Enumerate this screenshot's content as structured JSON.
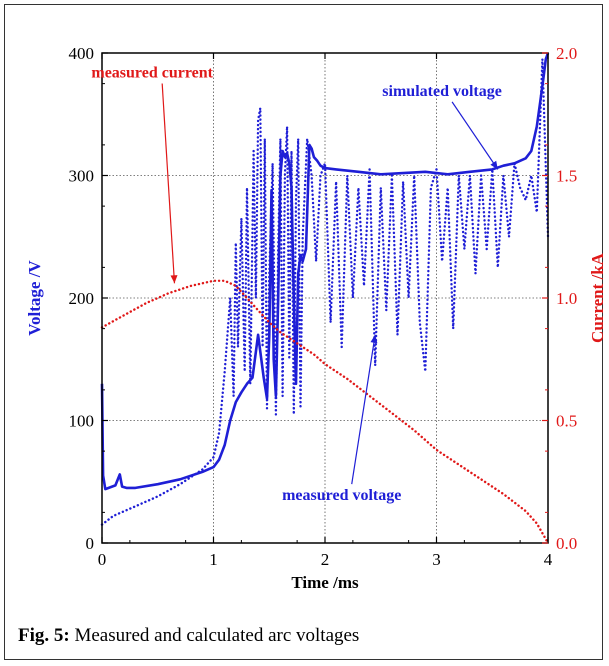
{
  "caption": {
    "label": "Fig. 5:",
    "text": "Measured and calculated arc voltages"
  },
  "chart_data": {
    "type": "line",
    "xlabel": "Time /ms",
    "ylabel_left": "Voltage /V",
    "ylabel_right": "Current /kA",
    "xlim": [
      0,
      4
    ],
    "ylim_left": [
      0,
      400
    ],
    "ylim_right": [
      0,
      2.0
    ],
    "x_ticks": [
      "0",
      "1",
      "2",
      "3",
      "4"
    ],
    "y_left_ticks": [
      "0",
      "100",
      "200",
      "300",
      "400"
    ],
    "y_right_ticks": [
      "0.0",
      "0.5",
      "1.0",
      "1.5",
      "2.0"
    ],
    "grid": true,
    "colors": {
      "voltage": "#1f1fd6",
      "current": "#e01818",
      "axis": "#000000"
    },
    "annotations": [
      {
        "text": "measured current",
        "color": "#e01818",
        "at": [
          0.45,
          380
        ],
        "arrow_to": [
          0.65,
          212
        ]
      },
      {
        "text": "simulated voltage",
        "color": "#1f1fd6",
        "at": [
          3.05,
          365
        ],
        "arrow_to": [
          3.55,
          305
        ]
      },
      {
        "text": "measured voltage",
        "color": "#1f1fd6",
        "at": [
          2.15,
          35
        ],
        "arrow_to": [
          2.45,
          170
        ]
      }
    ],
    "series": [
      {
        "name": "simulated voltage",
        "axis": "left",
        "style": "solid",
        "x": [
          0.0,
          0.01,
          0.03,
          0.06,
          0.12,
          0.16,
          0.18,
          0.22,
          0.3,
          0.5,
          0.7,
          0.9,
          1.0,
          1.05,
          1.1,
          1.15,
          1.2,
          1.25,
          1.3,
          1.35,
          1.4,
          1.45,
          1.48,
          1.5,
          1.52,
          1.54,
          1.56,
          1.58,
          1.6,
          1.62,
          1.64,
          1.66,
          1.68,
          1.7,
          1.72,
          1.74,
          1.76,
          1.78,
          1.8,
          1.83,
          1.86,
          1.88,
          1.9,
          1.93,
          1.96,
          2.0,
          2.1,
          2.3,
          2.5,
          2.7,
          2.9,
          3.1,
          3.3,
          3.5,
          3.6,
          3.7,
          3.8,
          3.85,
          3.9,
          3.93,
          3.96,
          3.98,
          4.0
        ],
        "y": [
          130,
          55,
          44,
          45,
          47,
          56,
          46,
          45,
          45,
          48,
          52,
          58,
          62,
          68,
          80,
          100,
          115,
          123,
          130,
          135,
          170,
          135,
          118,
          170,
          288,
          150,
          120,
          200,
          300,
          320,
          315,
          318,
          310,
          290,
          200,
          130,
          220,
          235,
          230,
          240,
          325,
          322,
          315,
          312,
          308,
          306,
          305,
          303,
          301,
          302,
          303,
          301,
          303,
          305,
          308,
          310,
          314,
          320,
          340,
          360,
          380,
          395,
          400
        ]
      },
      {
        "name": "measured voltage",
        "axis": "left",
        "style": "dotted",
        "x": [
          0.0,
          0.1,
          0.3,
          0.5,
          0.7,
          0.9,
          1.0,
          1.05,
          1.1,
          1.15,
          1.18,
          1.2,
          1.22,
          1.25,
          1.28,
          1.3,
          1.33,
          1.36,
          1.38,
          1.4,
          1.42,
          1.44,
          1.46,
          1.48,
          1.5,
          1.53,
          1.56,
          1.58,
          1.6,
          1.62,
          1.64,
          1.66,
          1.68,
          1.7,
          1.72,
          1.74,
          1.76,
          1.78,
          1.8,
          1.84,
          1.88,
          1.92,
          1.96,
          2.0,
          2.05,
          2.1,
          2.15,
          2.2,
          2.25,
          2.3,
          2.35,
          2.4,
          2.45,
          2.5,
          2.55,
          2.6,
          2.65,
          2.7,
          2.75,
          2.8,
          2.85,
          2.9,
          2.95,
          3.0,
          3.05,
          3.1,
          3.15,
          3.2,
          3.25,
          3.3,
          3.35,
          3.4,
          3.45,
          3.5,
          3.55,
          3.6,
          3.65,
          3.7,
          3.75,
          3.8,
          3.85,
          3.9,
          3.95,
          4.0
        ],
        "y": [
          15,
          22,
          30,
          38,
          48,
          60,
          70,
          90,
          140,
          200,
          120,
          245,
          160,
          265,
          140,
          290,
          130,
          320,
          200,
          345,
          355,
          160,
          330,
          110,
          220,
          310,
          105,
          240,
          330,
          120,
          300,
          340,
          150,
          320,
          105,
          280,
          330,
          110,
          250,
          330,
          300,
          230,
          300,
          310,
          180,
          295,
          160,
          300,
          200,
          290,
          210,
          305,
          145,
          290,
          190,
          300,
          170,
          295,
          200,
          300,
          180,
          140,
          290,
          305,
          230,
          290,
          175,
          300,
          240,
          300,
          220,
          300,
          240,
          305,
          225,
          300,
          250,
          310,
          290,
          280,
          300,
          270,
          395,
          250
        ]
      },
      {
        "name": "measured current",
        "axis": "right",
        "style": "dotted",
        "x": [
          0.0,
          0.2,
          0.4,
          0.6,
          0.8,
          1.0,
          1.1,
          1.2,
          1.3,
          1.4,
          1.5,
          1.6,
          1.7,
          1.8,
          1.9,
          2.0,
          2.2,
          2.4,
          2.6,
          2.8,
          3.0,
          3.2,
          3.4,
          3.6,
          3.8,
          3.9,
          4.0
        ],
        "y": [
          0.88,
          0.93,
          0.98,
          1.02,
          1.05,
          1.07,
          1.07,
          1.05,
          1.0,
          0.95,
          0.9,
          0.86,
          0.83,
          0.8,
          0.77,
          0.73,
          0.67,
          0.6,
          0.53,
          0.46,
          0.38,
          0.32,
          0.26,
          0.2,
          0.13,
          0.08,
          0.0
        ]
      }
    ]
  }
}
